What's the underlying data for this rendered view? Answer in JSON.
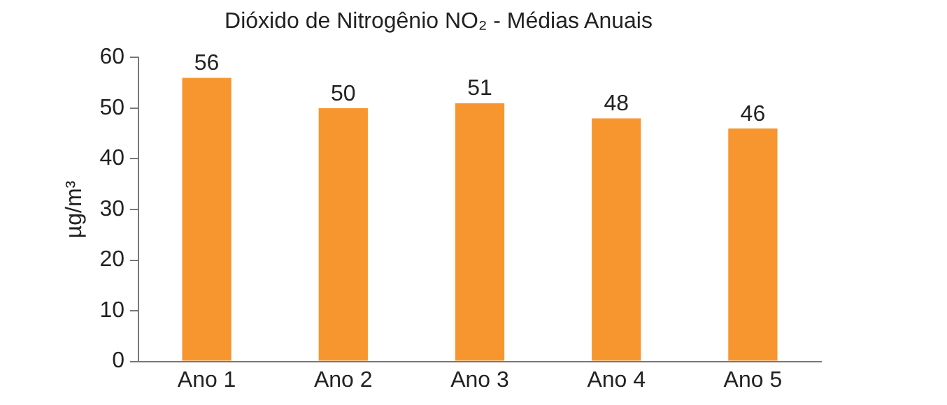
{
  "chart_data": {
    "type": "bar",
    "title": "Dióxido de Nitrogênio NO₂ - Médias Anuais",
    "ylabel": "µg/m³",
    "categories": [
      "Ano 1",
      "Ano 2",
      "Ano 3",
      "Ano 4",
      "Ano 5"
    ],
    "values": [
      56,
      50,
      51,
      48,
      46
    ],
    "color": "#f7962e",
    "ylim": [
      0,
      60
    ],
    "yticks": [
      0,
      10,
      20,
      30,
      40,
      50,
      60
    ],
    "grid": false,
    "data_labels": true,
    "legend": false
  }
}
